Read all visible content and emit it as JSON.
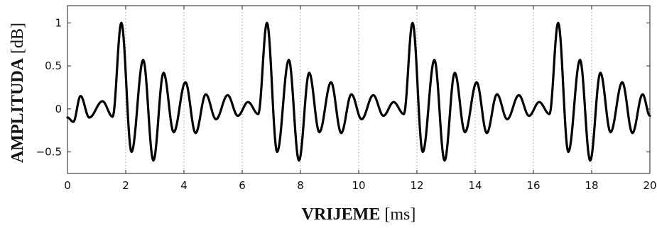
{
  "chart_data": {
    "type": "line",
    "title": "",
    "xlabel_bold": "VRIJEME",
    "xlabel_unit": "[ms]",
    "ylabel_bold": "AMPLITUDA",
    "ylabel_unit": "[dB]",
    "xlim": [
      0,
      20
    ],
    "ylim": [
      -0.75,
      1.2
    ],
    "xticks": [
      0,
      2,
      4,
      6,
      8,
      10,
      12,
      14,
      16,
      18,
      20
    ],
    "xtick_labels": [
      "0",
      "2",
      "4",
      "6",
      "8",
      "10",
      "12",
      "14",
      "16",
      "18",
      "20"
    ],
    "yticks": [
      1,
      0.5,
      0,
      -0.5
    ],
    "ytick_labels": [
      "1",
      "0.5",
      "0",
      "−0.5"
    ],
    "grid": "vertical-dotted",
    "line_color": "#000000",
    "period_ms": 5,
    "pulse_centers_ms": [
      1.85,
      6.85,
      11.85,
      16.85
    ],
    "series": [
      {
        "x": [
          0,
          0.2,
          0.45,
          0.75,
          1.2,
          1.55,
          1.85,
          2.2,
          2.6,
          2.95,
          3.3,
          3.65,
          4.05,
          4.4,
          4.75,
          5.1,
          5.5,
          5.85,
          6.2,
          6.55,
          6.85,
          7.2,
          7.6,
          7.95,
          8.3,
          8.65,
          9.05,
          9.4,
          9.75,
          10.1,
          10.5,
          10.85,
          11.2,
          11.55,
          11.85,
          12.2,
          12.6,
          12.95,
          13.3,
          13.65,
          14.05,
          14.4,
          14.75,
          15.1,
          15.5,
          15.85,
          16.2,
          16.55,
          16.85,
          17.2,
          17.6,
          17.95,
          18.3,
          18.65,
          19.05,
          19.4,
          19.75,
          20
        ],
        "y": [
          -0.1,
          -0.15,
          0.15,
          -0.1,
          0.09,
          -0.09,
          1.0,
          -0.5,
          0.57,
          -0.6,
          0.42,
          -0.27,
          0.31,
          -0.28,
          0.17,
          -0.12,
          0.16,
          -0.08,
          0.08,
          -0.06,
          1.0,
          -0.5,
          0.57,
          -0.6,
          0.42,
          -0.27,
          0.31,
          -0.28,
          0.17,
          -0.12,
          0.16,
          -0.08,
          0.08,
          -0.06,
          1.0,
          -0.5,
          0.57,
          -0.6,
          0.42,
          -0.27,
          0.31,
          -0.28,
          0.17,
          -0.12,
          0.16,
          -0.08,
          0.08,
          -0.06,
          1.0,
          -0.5,
          0.57,
          -0.6,
          0.42,
          -0.27,
          0.31,
          -0.28,
          0.17,
          -0.08
        ]
      }
    ]
  }
}
